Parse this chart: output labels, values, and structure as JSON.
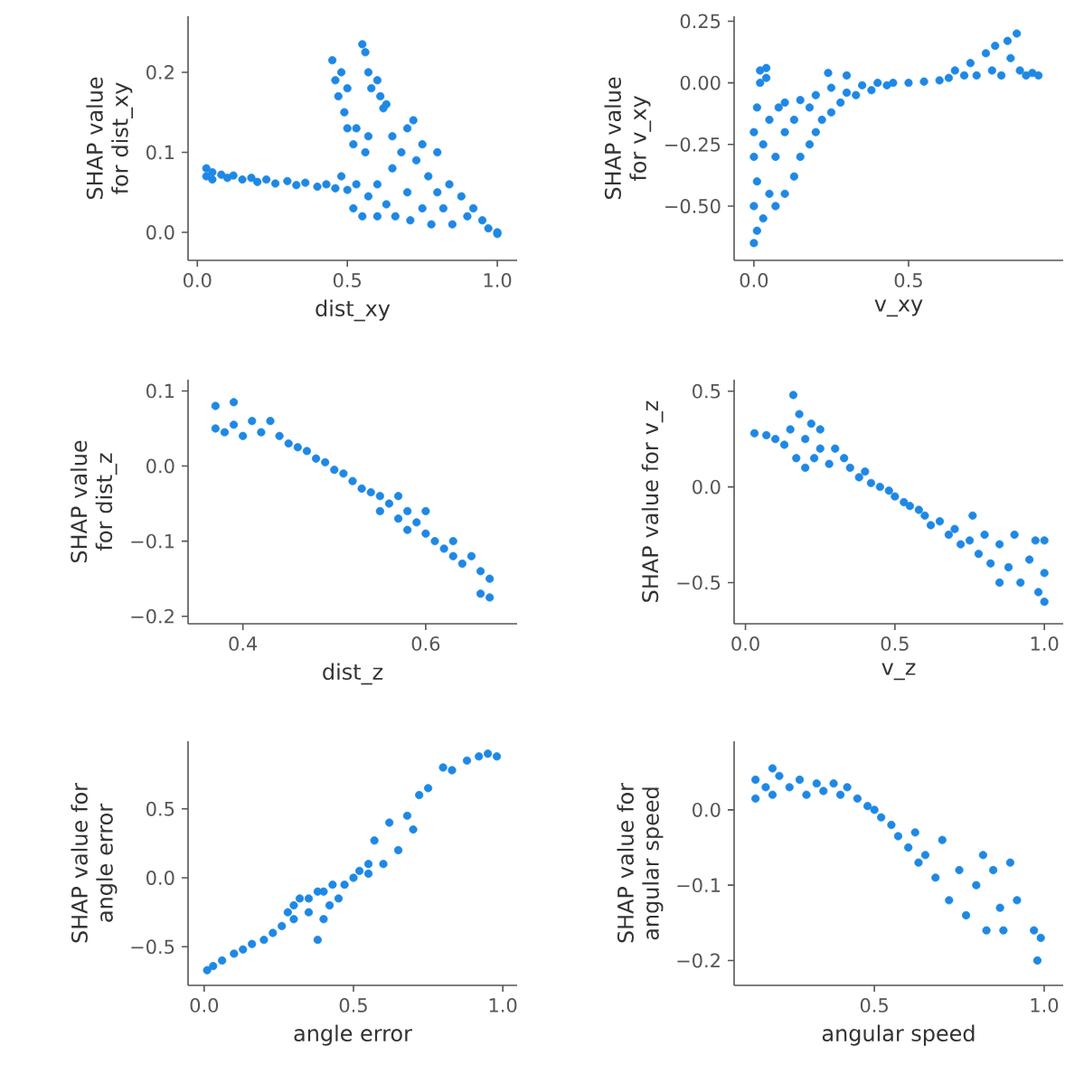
{
  "chart_data": [
    {
      "type": "scatter",
      "xlabel": "dist_xy",
      "ylabel": "SHAP value for dist_xy",
      "color": "#1e88e5",
      "marker": "circle",
      "xlim": [
        -0.031,
        1.066
      ],
      "ylim": [
        -0.035,
        0.27
      ],
      "xticks": [
        {
          "value": 0,
          "label": "0.0"
        },
        {
          "value": 0.5,
          "label": "0.5"
        },
        {
          "value": 1,
          "label": "1.0"
        }
      ],
      "yticks": [
        {
          "value": 0,
          "label": "0.0"
        },
        {
          "value": 0.1,
          "label": "0.1"
        },
        {
          "value": 0.2,
          "label": "0.2"
        }
      ],
      "x": [
        0.03,
        0.03,
        0.05,
        0.05,
        0.08,
        0.1,
        0.12,
        0.15,
        0.18,
        0.2,
        0.23,
        0.26,
        0.3,
        0.33,
        0.36,
        0.4,
        0.43,
        0.46,
        0.48,
        0.5,
        0.52,
        0.53,
        0.55,
        0.57,
        0.6,
        0.6,
        0.63,
        0.65,
        0.66,
        0.68,
        0.7,
        0.7,
        0.71,
        0.72,
        0.73,
        0.75,
        0.75,
        0.77,
        0.78,
        0.8,
        0.8,
        0.82,
        0.84,
        0.85,
        0.88,
        0.9,
        0.92,
        0.95,
        0.97,
        1.0,
        1.0,
        0.45,
        0.46,
        0.47,
        0.48,
        0.49,
        0.5,
        0.5,
        0.52,
        0.53,
        0.55,
        0.56,
        0.57,
        0.58,
        0.56,
        0.57,
        0.6,
        0.61,
        0.62,
        0.63,
        0.65
      ],
      "values": [
        0.08,
        0.07,
        0.075,
        0.066,
        0.072,
        0.068,
        0.071,
        0.066,
        0.068,
        0.063,
        0.066,
        0.061,
        0.064,
        0.059,
        0.062,
        0.057,
        0.06,
        0.055,
        0.07,
        0.053,
        0.03,
        0.06,
        0.02,
        0.045,
        0.02,
        0.06,
        0.035,
        0.08,
        0.02,
        0.1,
        0.13,
        0.05,
        0.015,
        0.14,
        0.09,
        0.11,
        0.03,
        0.07,
        0.01,
        0.1,
        0.05,
        0.03,
        0.06,
        0.01,
        0.045,
        0.02,
        0.03,
        0.015,
        0.005,
        0.0,
        -0.002,
        0.215,
        0.19,
        0.17,
        0.2,
        0.15,
        0.18,
        0.13,
        0.11,
        0.13,
        0.235,
        0.225,
        0.2,
        0.18,
        0.1,
        0.12,
        0.19,
        0.17,
        0.155,
        0.16,
        0.12
      ]
    },
    {
      "type": "scatter",
      "xlabel": "v_xy",
      "ylabel": "SHAP value for v_xy",
      "color": "#1e88e5",
      "marker": "circle",
      "xlim": [
        -0.064,
        1.0
      ],
      "ylim": [
        -0.72,
        0.27
      ],
      "xticks": [
        {
          "value": 0,
          "label": "0.0"
        },
        {
          "value": 0.5,
          "label": "0.5"
        }
      ],
      "yticks": [
        {
          "value": -0.5,
          "label": "−0.50"
        },
        {
          "value": -0.25,
          "label": "−0.25"
        },
        {
          "value": 0,
          "label": "0.00"
        },
        {
          "value": 0.25,
          "label": "0.25"
        }
      ],
      "x": [
        0.0,
        0.0,
        0.0,
        0.0,
        0.01,
        0.01,
        0.01,
        0.02,
        0.02,
        0.03,
        0.03,
        0.04,
        0.04,
        0.05,
        0.05,
        0.07,
        0.07,
        0.08,
        0.1,
        0.1,
        0.1,
        0.13,
        0.13,
        0.15,
        0.15,
        0.18,
        0.18,
        0.2,
        0.2,
        0.22,
        0.24,
        0.25,
        0.25,
        0.28,
        0.3,
        0.3,
        0.33,
        0.35,
        0.38,
        0.4,
        0.43,
        0.45,
        0.5,
        0.55,
        0.6,
        0.63,
        0.65,
        0.68,
        0.7,
        0.72,
        0.75,
        0.77,
        0.78,
        0.8,
        0.82,
        0.83,
        0.85,
        0.86,
        0.88,
        0.9,
        0.92
      ],
      "values": [
        -0.65,
        -0.5,
        -0.3,
        -0.2,
        -0.6,
        -0.4,
        -0.1,
        0.05,
        0.0,
        -0.55,
        -0.25,
        0.06,
        0.02,
        -0.45,
        -0.15,
        -0.5,
        -0.3,
        -0.1,
        -0.45,
        -0.2,
        -0.08,
        -0.38,
        -0.15,
        -0.3,
        -0.07,
        -0.25,
        -0.1,
        -0.2,
        -0.05,
        -0.15,
        0.04,
        -0.12,
        -0.02,
        -0.08,
        0.03,
        -0.04,
        -0.05,
        -0.01,
        -0.03,
        0.0,
        -0.01,
        0.0,
        0.0,
        0.005,
        0.01,
        0.02,
        0.05,
        0.03,
        0.08,
        0.03,
        0.12,
        0.05,
        0.15,
        0.03,
        0.17,
        0.1,
        0.2,
        0.05,
        0.03,
        0.04,
        0.03
      ]
    },
    {
      "type": "scatter",
      "xlabel": "dist_z",
      "ylabel": "SHAP value for dist_z",
      "color": "#1e88e5",
      "marker": "circle",
      "xlim": [
        0.34,
        0.7
      ],
      "ylim": [
        -0.21,
        0.115
      ],
      "xticks": [
        {
          "value": 0.4,
          "label": "0.4"
        },
        {
          "value": 0.6,
          "label": "0.6"
        }
      ],
      "yticks": [
        {
          "value": -0.2,
          "label": "−0.2"
        },
        {
          "value": -0.1,
          "label": "−0.1"
        },
        {
          "value": 0,
          "label": "0.0"
        },
        {
          "value": 0.1,
          "label": "0.1"
        }
      ],
      "x": [
        0.37,
        0.37,
        0.38,
        0.39,
        0.39,
        0.4,
        0.41,
        0.42,
        0.43,
        0.44,
        0.45,
        0.46,
        0.47,
        0.48,
        0.49,
        0.5,
        0.51,
        0.52,
        0.53,
        0.54,
        0.55,
        0.55,
        0.56,
        0.57,
        0.57,
        0.58,
        0.58,
        0.59,
        0.6,
        0.6,
        0.61,
        0.62,
        0.63,
        0.63,
        0.64,
        0.65,
        0.66,
        0.66,
        0.67,
        0.67
      ],
      "values": [
        0.08,
        0.05,
        0.045,
        0.085,
        0.055,
        0.04,
        0.06,
        0.045,
        0.06,
        0.04,
        0.03,
        0.025,
        0.02,
        0.01,
        0.005,
        -0.005,
        -0.01,
        -0.02,
        -0.03,
        -0.035,
        -0.04,
        -0.06,
        -0.05,
        -0.07,
        -0.04,
        -0.06,
        -0.085,
        -0.075,
        -0.09,
        -0.06,
        -0.1,
        -0.11,
        -0.12,
        -0.1,
        -0.13,
        -0.12,
        -0.14,
        -0.17,
        -0.15,
        -0.175
      ]
    },
    {
      "type": "scatter",
      "xlabel": "v_z",
      "ylabel": "SHAP value for v_z",
      "color": "#1e88e5",
      "marker": "circle",
      "xlim": [
        -0.038,
        1.063
      ],
      "ylim": [
        -0.715,
        0.56
      ],
      "xticks": [
        {
          "value": 0,
          "label": "0.0"
        },
        {
          "value": 0.5,
          "label": "0.5"
        },
        {
          "value": 1,
          "label": "1.0"
        }
      ],
      "yticks": [
        {
          "value": -0.5,
          "label": "−0.5"
        },
        {
          "value": 0,
          "label": "0.0"
        },
        {
          "value": 0.5,
          "label": "0.5"
        }
      ],
      "x": [
        0.03,
        0.07,
        0.1,
        0.13,
        0.15,
        0.16,
        0.17,
        0.18,
        0.2,
        0.2,
        0.22,
        0.23,
        0.25,
        0.25,
        0.28,
        0.3,
        0.33,
        0.35,
        0.38,
        0.4,
        0.42,
        0.45,
        0.48,
        0.5,
        0.53,
        0.55,
        0.58,
        0.6,
        0.62,
        0.65,
        0.68,
        0.7,
        0.72,
        0.75,
        0.76,
        0.78,
        0.8,
        0.82,
        0.85,
        0.85,
        0.88,
        0.9,
        0.92,
        0.95,
        0.97,
        0.98,
        1.0,
        1.0,
        1.0
      ],
      "values": [
        0.28,
        0.27,
        0.25,
        0.22,
        0.3,
        0.48,
        0.15,
        0.38,
        0.1,
        0.25,
        0.33,
        0.15,
        0.3,
        0.2,
        0.12,
        0.2,
        0.15,
        0.1,
        0.05,
        0.08,
        0.02,
        0.0,
        -0.02,
        -0.05,
        -0.08,
        -0.1,
        -0.12,
        -0.15,
        -0.2,
        -0.18,
        -0.25,
        -0.22,
        -0.3,
        -0.28,
        -0.15,
        -0.35,
        -0.25,
        -0.4,
        -0.3,
        -0.5,
        -0.42,
        -0.25,
        -0.5,
        -0.38,
        -0.28,
        -0.55,
        -0.6,
        -0.45,
        -0.28
      ]
    },
    {
      "type": "scatter",
      "xlabel": "angle error",
      "ylabel": "SHAP value for angle error",
      "color": "#1e88e5",
      "marker": "circle",
      "xlim": [
        -0.054,
        1.048
      ],
      "ylim": [
        -0.78,
        0.99
      ],
      "xticks": [
        {
          "value": 0,
          "label": "0.0"
        },
        {
          "value": 0.5,
          "label": "0.5"
        },
        {
          "value": 1,
          "label": "1.0"
        }
      ],
      "yticks": [
        {
          "value": -0.5,
          "label": "−0.5"
        },
        {
          "value": 0,
          "label": "0.0"
        },
        {
          "value": 0.5,
          "label": "0.5"
        }
      ],
      "x": [
        0.01,
        0.03,
        0.06,
        0.1,
        0.13,
        0.16,
        0.2,
        0.23,
        0.26,
        0.28,
        0.3,
        0.3,
        0.32,
        0.35,
        0.35,
        0.38,
        0.38,
        0.4,
        0.4,
        0.42,
        0.43,
        0.45,
        0.47,
        0.5,
        0.52,
        0.55,
        0.55,
        0.57,
        0.6,
        0.62,
        0.65,
        0.68,
        0.7,
        0.72,
        0.75,
        0.8,
        0.83,
        0.88,
        0.92,
        0.95,
        0.98
      ],
      "values": [
        -0.67,
        -0.64,
        -0.6,
        -0.55,
        -0.52,
        -0.48,
        -0.45,
        -0.4,
        -0.35,
        -0.25,
        -0.2,
        -0.3,
        -0.15,
        -0.25,
        -0.15,
        -0.45,
        -0.1,
        -0.3,
        -0.1,
        -0.2,
        -0.05,
        -0.15,
        -0.05,
        0.0,
        0.05,
        0.1,
        0.03,
        0.27,
        0.1,
        0.4,
        0.2,
        0.45,
        0.35,
        0.6,
        0.65,
        0.8,
        0.78,
        0.85,
        0.88,
        0.9,
        0.88
      ]
    },
    {
      "type": "scatter",
      "xlabel": "angular speed",
      "ylabel": "SHAP value for angular speed",
      "color": "#1e88e5",
      "marker": "circle",
      "xlim": [
        0.087,
        1.056
      ],
      "ylim": [
        -0.233,
        0.091
      ],
      "xticks": [
        {
          "value": 0.5,
          "label": "0.5"
        },
        {
          "value": 1,
          "label": "1.0"
        }
      ],
      "yticks": [
        {
          "value": -0.2,
          "label": "−0.2"
        },
        {
          "value": -0.1,
          "label": "−0.1"
        },
        {
          "value": 0,
          "label": "0.0"
        }
      ],
      "x": [
        0.15,
        0.15,
        0.18,
        0.2,
        0.2,
        0.22,
        0.25,
        0.28,
        0.3,
        0.33,
        0.35,
        0.38,
        0.4,
        0.42,
        0.45,
        0.48,
        0.5,
        0.52,
        0.55,
        0.57,
        0.6,
        0.62,
        0.63,
        0.65,
        0.68,
        0.7,
        0.72,
        0.75,
        0.77,
        0.8,
        0.82,
        0.83,
        0.85,
        0.87,
        0.88,
        0.9,
        0.92,
        0.97,
        0.98,
        0.99
      ],
      "values": [
        0.04,
        0.015,
        0.03,
        0.055,
        0.02,
        0.045,
        0.03,
        0.04,
        0.02,
        0.035,
        0.025,
        0.035,
        0.02,
        0.03,
        0.015,
        0.005,
        0.0,
        -0.01,
        -0.02,
        -0.035,
        -0.05,
        -0.03,
        -0.07,
        -0.06,
        -0.09,
        -0.04,
        -0.12,
        -0.08,
        -0.14,
        -0.1,
        -0.06,
        -0.16,
        -0.08,
        -0.13,
        -0.16,
        -0.07,
        -0.12,
        -0.16,
        -0.2,
        -0.17
      ]
    }
  ]
}
